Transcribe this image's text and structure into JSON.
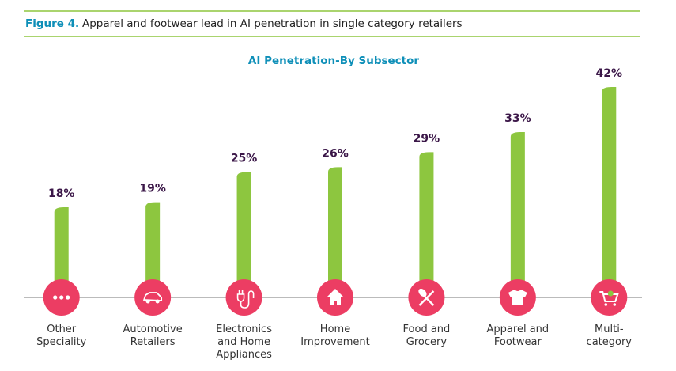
{
  "chart_data": {
    "type": "bar",
    "figure_label": "Figure 4.",
    "title": "Apparel and footwear lead in AI penetration in single category retailers",
    "subtitle": "AI Penetration-By Subsector",
    "categories": [
      "Other\nSpeciality",
      "Automotive\nRetailers",
      "Electronics\nand Home\nAppliances",
      "Home\nImprovement",
      "Food and\nGrocery",
      "Apparel and\nFootwear",
      "Multi-\ncategory"
    ],
    "values": [
      18,
      19,
      25,
      26,
      29,
      33,
      42
    ],
    "value_labels": [
      "18%",
      "19%",
      "25%",
      "26%",
      "29%",
      "33%",
      "42%"
    ],
    "color": "#8dc63f",
    "ylim": [
      0,
      45
    ]
  }
}
